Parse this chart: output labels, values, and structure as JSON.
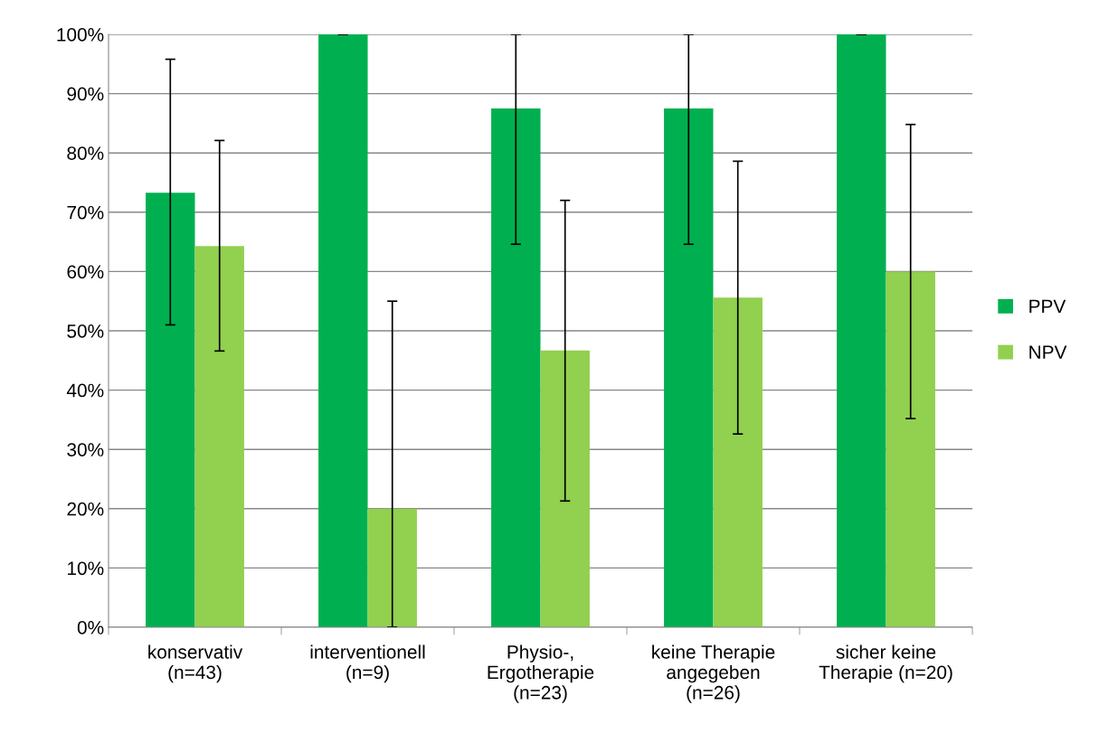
{
  "chart_data": {
    "type": "bar",
    "categories": [
      "konservativ\n(n=43)",
      "interventionell\n(n=9)",
      "Physio-,\nErgotherapie\n(n=23)",
      "keine Therapie\nangegeben\n(n=26)",
      "sicher keine\nTherapie (n=20)"
    ],
    "series": [
      {
        "name": "PPV",
        "color": "#00b050",
        "values": [
          73.3,
          100,
          87.5,
          87.5,
          100
        ],
        "errors": [
          [
            51.0,
            95.8
          ],
          [
            100,
            100
          ],
          [
            64.6,
            100
          ],
          [
            64.6,
            100
          ],
          [
            100,
            100
          ]
        ]
      },
      {
        "name": "NPV",
        "color": "#92d050",
        "values": [
          64.3,
          20,
          46.7,
          55.6,
          60
        ],
        "errors": [
          [
            46.6,
            82.1
          ],
          [
            0,
            55.0
          ],
          [
            21.3,
            72.0
          ],
          [
            32.6,
            78.6
          ],
          [
            35.2,
            84.8
          ]
        ]
      }
    ],
    "ylim": [
      0,
      100
    ],
    "yticks": [
      {
        "value": 0,
        "label": "0%"
      },
      {
        "value": 10,
        "label": "10%"
      },
      {
        "value": 20,
        "label": "20%"
      },
      {
        "value": 30,
        "label": "30%"
      },
      {
        "value": 40,
        "label": "40%"
      },
      {
        "value": 50,
        "label": "50%"
      },
      {
        "value": 60,
        "label": "60%"
      },
      {
        "value": 70,
        "label": "70%"
      },
      {
        "value": 80,
        "label": "80%"
      },
      {
        "value": 90,
        "label": "90%"
      },
      {
        "value": 100,
        "label": "100%"
      }
    ],
    "grid": "y",
    "legend": "right"
  }
}
